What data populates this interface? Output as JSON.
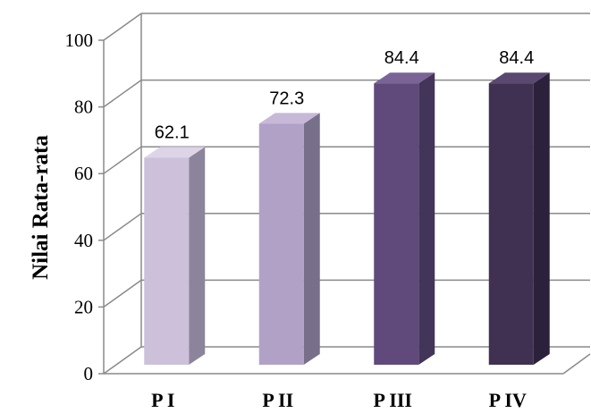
{
  "chart_data": {
    "type": "bar",
    "style": "3d-column",
    "title": "",
    "xlabel": "",
    "ylabel": "Nilai Rata-rata",
    "categories": [
      "P I",
      "P II",
      "P III",
      "P IV"
    ],
    "values": [
      62.1,
      72.3,
      84.4,
      84.4
    ],
    "value_labels": [
      "62.1",
      "72.3",
      "84.4",
      "84.4"
    ],
    "ylim": [
      0,
      100
    ],
    "yticks": [
      0,
      20,
      40,
      60,
      80,
      100
    ],
    "ytick_labels": [
      "0",
      "20",
      "40",
      "60",
      "80",
      "100"
    ],
    "grid": true,
    "legend": "none",
    "bar_colors": [
      {
        "front": "#CCC0DA",
        "side": "#8C849A",
        "top": "#DED4E8"
      },
      {
        "front": "#B2A1C7",
        "side": "#78708A",
        "top": "#C7B8D8"
      },
      {
        "front": "#604A7B",
        "side": "#43345A",
        "top": "#7A6496"
      },
      {
        "front": "#403152",
        "side": "#2B213A",
        "top": "#5A4870"
      }
    ]
  }
}
